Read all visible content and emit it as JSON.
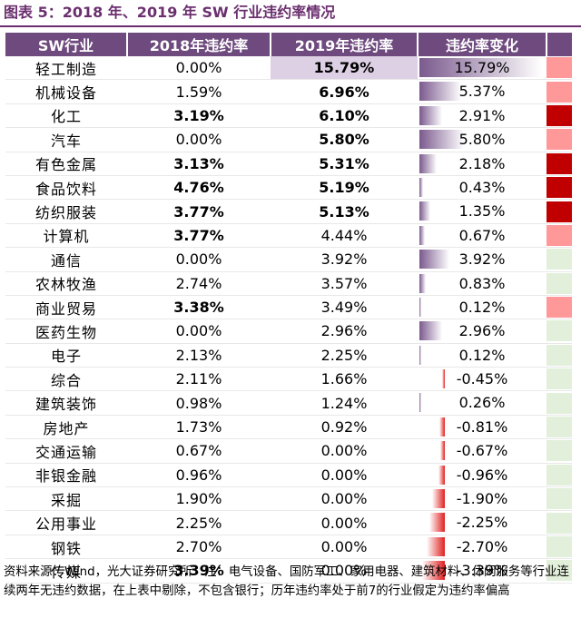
{
  "title": "图表 5：2018 年、2019 年 SW 行业违约率情况",
  "table": {
    "headers": [
      "SW行业",
      "2018年违约率",
      "2019年违约率",
      "违约率变化"
    ],
    "rows": [
      {
        "industry": "轻工制造",
        "v2018": "0.00%",
        "v2018_bold": false,
        "v2019": "15.79%",
        "v2019_bold": true,
        "v2019_hl": true,
        "change": "15.79%",
        "change_pct": 15.79,
        "flag": "#ff9999"
      },
      {
        "industry": "机械设备",
        "v2018": "1.59%",
        "v2018_bold": false,
        "v2019": "6.96%",
        "v2019_bold": true,
        "v2019_hl": false,
        "change": "5.37%",
        "change_pct": 5.37,
        "flag": "#ff9999"
      },
      {
        "industry": "化工",
        "v2018": "3.19%",
        "v2018_bold": true,
        "v2019": "6.10%",
        "v2019_bold": true,
        "v2019_hl": false,
        "change": "2.91%",
        "change_pct": 2.91,
        "flag": "#c00000"
      },
      {
        "industry": "汽车",
        "v2018": "0.00%",
        "v2018_bold": false,
        "v2019": "5.80%",
        "v2019_bold": true,
        "v2019_hl": false,
        "change": "5.80%",
        "change_pct": 5.8,
        "flag": "#ff9999"
      },
      {
        "industry": "有色金属",
        "v2018": "3.13%",
        "v2018_bold": true,
        "v2019": "5.31%",
        "v2019_bold": true,
        "v2019_hl": false,
        "change": "2.18%",
        "change_pct": 2.18,
        "flag": "#c00000"
      },
      {
        "industry": "食品饮料",
        "v2018": "4.76%",
        "v2018_bold": true,
        "v2019": "5.19%",
        "v2019_bold": true,
        "v2019_hl": false,
        "change": "0.43%",
        "change_pct": 0.43,
        "flag": "#c00000"
      },
      {
        "industry": "纺织服装",
        "v2018": "3.77%",
        "v2018_bold": true,
        "v2019": "5.13%",
        "v2019_bold": true,
        "v2019_hl": false,
        "change": "1.35%",
        "change_pct": 1.35,
        "flag": "#c00000"
      },
      {
        "industry": "计算机",
        "v2018": "3.77%",
        "v2018_bold": true,
        "v2019": "4.44%",
        "v2019_bold": false,
        "v2019_hl": false,
        "change": "0.67%",
        "change_pct": 0.67,
        "flag": "#ff9999"
      },
      {
        "industry": "通信",
        "v2018": "0.00%",
        "v2018_bold": false,
        "v2019": "3.92%",
        "v2019_bold": false,
        "v2019_hl": false,
        "change": "3.92%",
        "change_pct": 3.92,
        "flag": "#e2efda"
      },
      {
        "industry": "农林牧渔",
        "v2018": "2.74%",
        "v2018_bold": false,
        "v2019": "3.57%",
        "v2019_bold": false,
        "v2019_hl": false,
        "change": "0.83%",
        "change_pct": 0.83,
        "flag": "#e2efda"
      },
      {
        "industry": "商业贸易",
        "v2018": "3.38%",
        "v2018_bold": true,
        "v2019": "3.49%",
        "v2019_bold": false,
        "v2019_hl": false,
        "change": "0.12%",
        "change_pct": 0.12,
        "flag": "#ff9999"
      },
      {
        "industry": "医药生物",
        "v2018": "0.00%",
        "v2018_bold": false,
        "v2019": "2.96%",
        "v2019_bold": false,
        "v2019_hl": false,
        "change": "2.96%",
        "change_pct": 2.96,
        "flag": "#e2efda"
      },
      {
        "industry": "电子",
        "v2018": "2.13%",
        "v2018_bold": false,
        "v2019": "2.25%",
        "v2019_bold": false,
        "v2019_hl": false,
        "change": "0.12%",
        "change_pct": 0.12,
        "flag": "#e2efda"
      },
      {
        "industry": "综合",
        "v2018": "2.11%",
        "v2018_bold": false,
        "v2019": "1.66%",
        "v2019_bold": false,
        "v2019_hl": false,
        "change": "-0.45%",
        "change_pct": -0.45,
        "flag": "#e2efda"
      },
      {
        "industry": "建筑装饰",
        "v2018": "0.98%",
        "v2018_bold": false,
        "v2019": "1.24%",
        "v2019_bold": false,
        "v2019_hl": false,
        "change": "0.26%",
        "change_pct": 0.26,
        "flag": "#e2efda"
      },
      {
        "industry": "房地产",
        "v2018": "1.73%",
        "v2018_bold": false,
        "v2019": "0.92%",
        "v2019_bold": false,
        "v2019_hl": false,
        "change": "-0.81%",
        "change_pct": -0.81,
        "flag": "#e2efda"
      },
      {
        "industry": "交通运输",
        "v2018": "0.67%",
        "v2018_bold": false,
        "v2019": "0.00%",
        "v2019_bold": false,
        "v2019_hl": false,
        "change": "-0.67%",
        "change_pct": -0.67,
        "flag": "#e2efda"
      },
      {
        "industry": "非银金融",
        "v2018": "0.96%",
        "v2018_bold": false,
        "v2019": "0.00%",
        "v2019_bold": false,
        "v2019_hl": false,
        "change": "-0.96%",
        "change_pct": -0.96,
        "flag": "#e2efda"
      },
      {
        "industry": "采掘",
        "v2018": "1.90%",
        "v2018_bold": false,
        "v2019": "0.00%",
        "v2019_bold": false,
        "v2019_hl": false,
        "change": "-1.90%",
        "change_pct": -1.9,
        "flag": "#e2efda"
      },
      {
        "industry": "公用事业",
        "v2018": "2.25%",
        "v2018_bold": false,
        "v2019": "0.00%",
        "v2019_bold": false,
        "v2019_hl": false,
        "change": "-2.25%",
        "change_pct": -2.25,
        "flag": "#e2efda"
      },
      {
        "industry": "钢铁",
        "v2018": "2.70%",
        "v2018_bold": false,
        "v2019": "0.00%",
        "v2019_bold": false,
        "v2019_hl": false,
        "change": "-2.70%",
        "change_pct": -2.7,
        "flag": "#e2efda"
      },
      {
        "industry": "传媒",
        "v2018": "3.39%",
        "v2018_bold": true,
        "v2019": "0.00%",
        "v2019_bold": false,
        "v2019_hl": false,
        "change": "-3.39%",
        "change_pct": -3.39,
        "flag": "#e2efda"
      }
    ]
  },
  "notes": "资料来源：Wind，光大证券研究所　注：电气设备、国防军工、家用电器、建筑材料、休闲服务等行业连续两年无违约数据，在上表中剔除，不包含银行；历年违约率处于前7的行业假定为违约率偏高",
  "colors": {
    "accent": "#6b2f6f",
    "header_bg": "#6e4a7e",
    "positive_bar": "#7b5a8e",
    "negative_bar": "#e02020"
  }
}
